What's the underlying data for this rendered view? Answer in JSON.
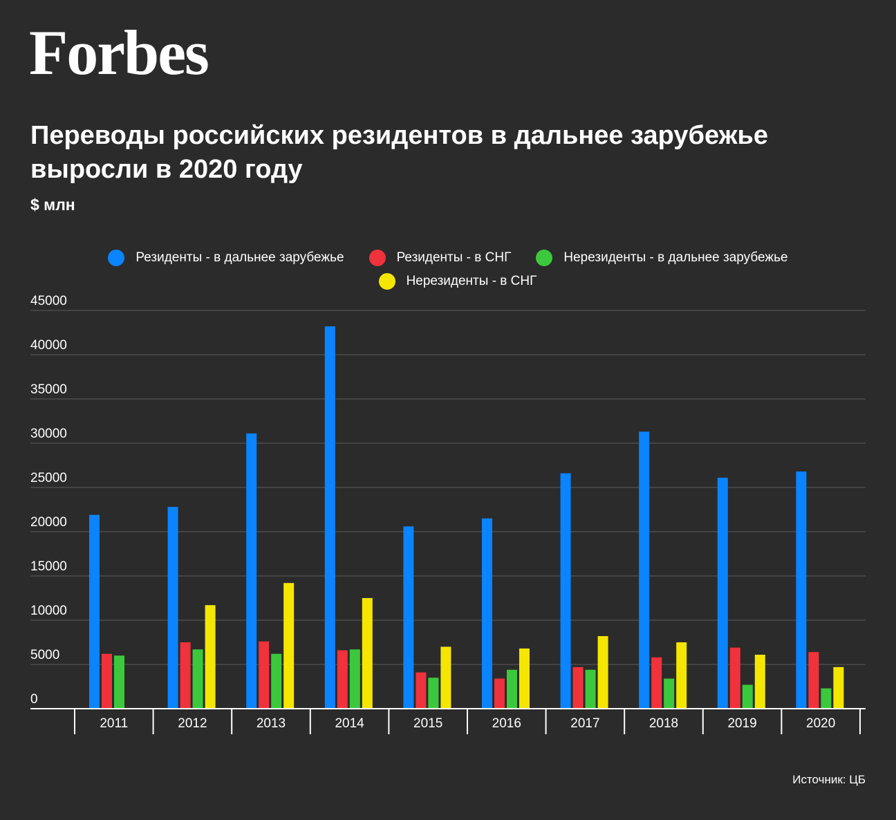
{
  "header": {
    "logo": "Forbes",
    "title_line1": "Переводы российских резидентов в дальнее зарубежье",
    "title_line2": "выросли в 2020 году",
    "unit": "$ млн"
  },
  "legend": [
    {
      "label": "Резиденты - в дальнее зарубежье",
      "color": "#0a84ff"
    },
    {
      "label": "Резиденты - в СНГ",
      "color": "#f0323c"
    },
    {
      "label": "Нерезиденты - в дальнее зарубежье",
      "color": "#3cc83c"
    },
    {
      "label": "Нерезиденты - в СНГ",
      "color": "#f5e600"
    }
  ],
  "source": "Источник: ЦБ",
  "chart_data": {
    "type": "bar",
    "categories": [
      "2011",
      "2012",
      "2013",
      "2014",
      "2015",
      "2016",
      "2017",
      "2018",
      "2019",
      "2020"
    ],
    "series": [
      {
        "name": "Резиденты - в дальнее зарубежье",
        "color": "#0a84ff",
        "values": [
          21900,
          22800,
          31100,
          43200,
          20600,
          21500,
          26600,
          31300,
          26100,
          26800
        ]
      },
      {
        "name": "Резиденты - в СНГ",
        "color": "#f0323c",
        "values": [
          6200,
          7500,
          7600,
          6600,
          4100,
          3400,
          4700,
          5800,
          6900,
          6400
        ]
      },
      {
        "name": "Нерезиденты - в дальнее зарубежье",
        "color": "#3cc83c",
        "values": [
          6000,
          6700,
          6200,
          6700,
          3500,
          4400,
          4400,
          3400,
          2700,
          2300
        ]
      },
      {
        "name": "Нерезиденты - в СНГ",
        "color": "#f5e600",
        "values": [
          0,
          11700,
          14200,
          12500,
          7000,
          6800,
          8200,
          7500,
          6100,
          4700
        ]
      }
    ],
    "yticks": [
      0,
      5000,
      10000,
      15000,
      20000,
      25000,
      30000,
      35000,
      40000,
      45000
    ],
    "ylim": [
      0,
      45000
    ],
    "grid": true,
    "legend_position": "top-center"
  }
}
